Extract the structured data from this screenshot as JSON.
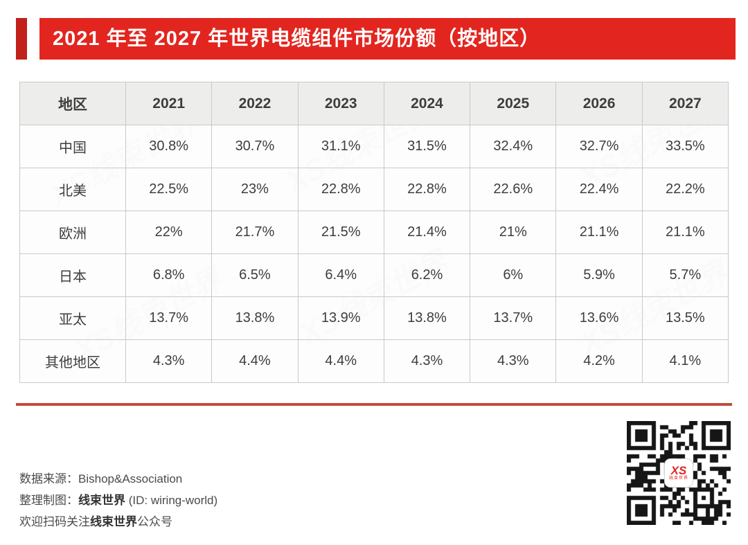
{
  "header": {
    "title": "2021 年至 2027 年世界电缆组件市场份额（按地区）"
  },
  "table": {
    "headers": [
      "地区",
      "2021",
      "2022",
      "2023",
      "2024",
      "2025",
      "2026",
      "2027"
    ],
    "rows": [
      {
        "region": "中国",
        "values": [
          "30.8%",
          "30.7%",
          "31.1%",
          "31.5%",
          "32.4%",
          "32.7%",
          "33.5%"
        ]
      },
      {
        "region": "北美",
        "values": [
          "22.5%",
          "23%",
          "22.8%",
          "22.8%",
          "22.6%",
          "22.4%",
          "22.2%"
        ]
      },
      {
        "region": "欧洲",
        "values": [
          "22%",
          "21.7%",
          "21.5%",
          "21.4%",
          "21%",
          "21.1%",
          "21.1%"
        ]
      },
      {
        "region": "日本",
        "values": [
          "6.8%",
          "6.5%",
          "6.4%",
          "6.2%",
          "6%",
          "5.9%",
          "5.7%"
        ]
      },
      {
        "region": "亚太",
        "values": [
          "13.7%",
          "13.8%",
          "13.9%",
          "13.8%",
          "13.7%",
          "13.6%",
          "13.5%"
        ]
      },
      {
        "region": "其他地区",
        "values": [
          "4.3%",
          "4.4%",
          "4.4%",
          "4.3%",
          "4.3%",
          "4.2%",
          "4.1%"
        ]
      }
    ]
  },
  "chart_data": {
    "type": "table",
    "title": "2021 年至 2027 年世界电缆组件市场份额（按地区）",
    "columns": [
      "地区",
      "2021",
      "2022",
      "2023",
      "2024",
      "2025",
      "2026",
      "2027"
    ],
    "rows": [
      [
        "中国",
        "30.8%",
        "30.7%",
        "31.1%",
        "31.5%",
        "32.4%",
        "32.7%",
        "33.5%"
      ],
      [
        "北美",
        "22.5%",
        "23%",
        "22.8%",
        "22.8%",
        "22.6%",
        "22.4%",
        "22.2%"
      ],
      [
        "欧洲",
        "22%",
        "21.7%",
        "21.5%",
        "21.4%",
        "21%",
        "21.1%",
        "21.1%"
      ],
      [
        "日本",
        "6.8%",
        "6.5%",
        "6.4%",
        "6.2%",
        "6%",
        "5.9%",
        "5.7%"
      ],
      [
        "亚太",
        "13.7%",
        "13.8%",
        "13.9%",
        "13.8%",
        "13.7%",
        "13.6%",
        "13.5%"
      ],
      [
        "其他地区",
        "4.3%",
        "4.4%",
        "4.4%",
        "4.3%",
        "4.3%",
        "4.2%",
        "4.1%"
      ]
    ]
  },
  "footer": {
    "lines": [
      {
        "parts": [
          {
            "t": "数据来源：Bishop&Association",
            "b": false
          }
        ]
      },
      {
        "parts": [
          {
            "t": "整理制图：",
            "b": false
          },
          {
            "t": "线束世界",
            "b": true
          },
          {
            "t": " (ID: wiring-world)",
            "b": false
          }
        ]
      },
      {
        "parts": [
          {
            "t": "欢迎扫码关注",
            "b": false
          },
          {
            "t": "线束世界",
            "b": true
          },
          {
            "t": "公众号",
            "b": false
          }
        ]
      }
    ]
  },
  "qr": {
    "logo_text": "XS",
    "caption": "线束世界"
  },
  "watermark": {
    "text": "XS线束世界"
  },
  "colors": {
    "banner_red": "#e2261f",
    "accent_dark_red": "#c2201a",
    "separator_red": "#c24a3c",
    "header_bg": "#ededec",
    "table_border": "#c9c9c9",
    "text_dark": "#3d3d3d",
    "footer_text": "#4a4a4a",
    "qr_logo_red": "#e02420"
  }
}
